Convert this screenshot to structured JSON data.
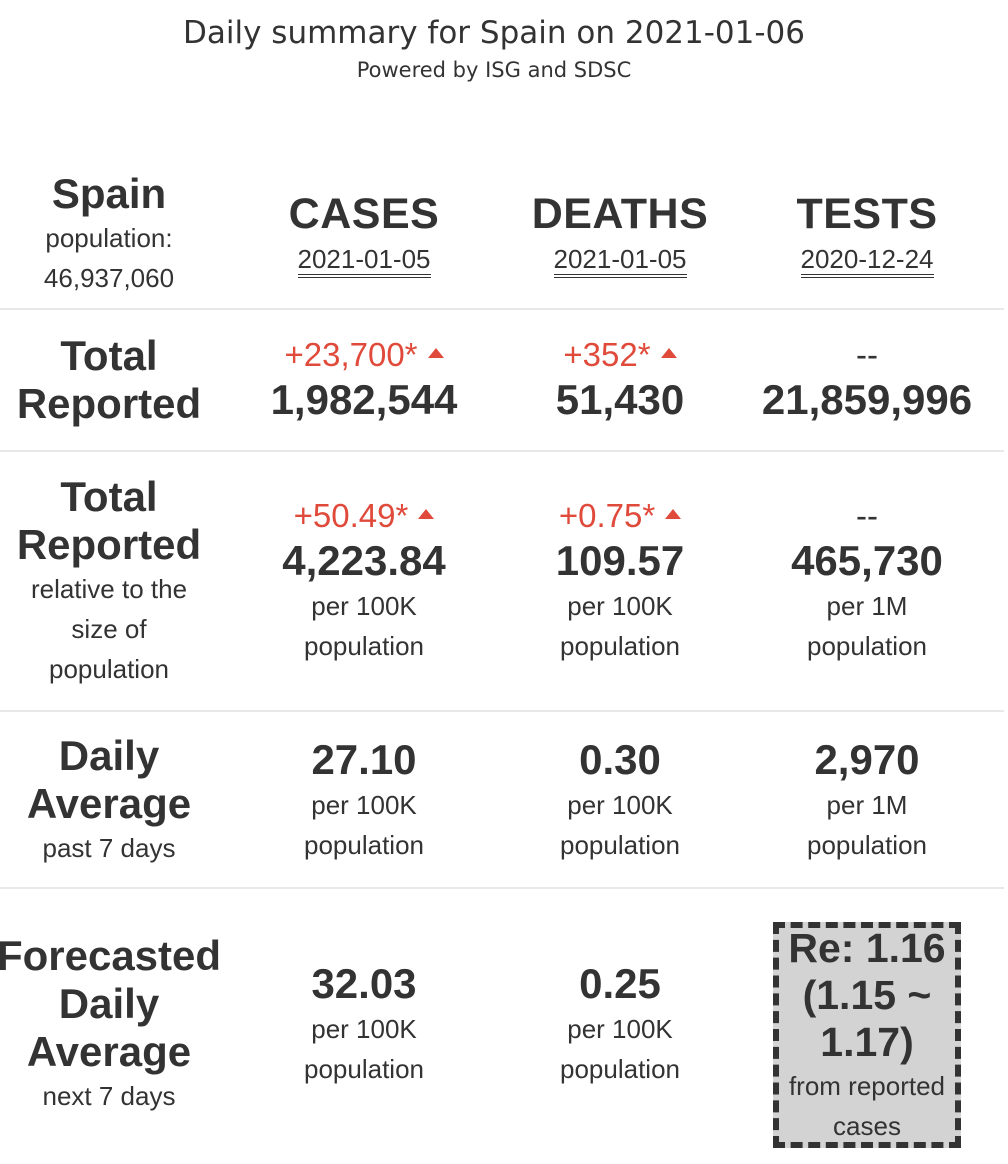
{
  "header": {
    "title": "Daily summary for Spain on 2021-01-06",
    "subtitle": "Powered by ISG and SDSC"
  },
  "country": {
    "name": "Spain",
    "population_label": "population:",
    "population_value": "46,937,060"
  },
  "columns": {
    "cases": {
      "label": "CASES",
      "date": "2021-01-05"
    },
    "deaths": {
      "label": "DEATHS",
      "date": "2021-01-05"
    },
    "tests": {
      "label": "TESTS",
      "date": "2020-12-24"
    }
  },
  "rows": {
    "total": {
      "label_line1": "Total",
      "label_line2": "Reported",
      "cases": {
        "delta": "+23,700*",
        "value": "1,982,544"
      },
      "deaths": {
        "delta": "+352*",
        "value": "51,430"
      },
      "tests": {
        "delta": "--",
        "value": "21,859,996"
      }
    },
    "relative": {
      "label_line1": "Total",
      "label_line2": "Reported",
      "label_sub1": "relative to the",
      "label_sub2": "size of",
      "label_sub3": "population",
      "cases": {
        "delta": "+50.49*",
        "value": "4,223.84",
        "unit1": "per 100K",
        "unit2": "population"
      },
      "deaths": {
        "delta": "+0.75*",
        "value": "109.57",
        "unit1": "per 100K",
        "unit2": "population"
      },
      "tests": {
        "delta": "--",
        "value": "465,730",
        "unit1": "per 1M",
        "unit2": "population"
      }
    },
    "daily_average": {
      "label_line1": "Daily",
      "label_line2": "Average",
      "label_sub": "past 7 days",
      "cases": {
        "value": "27.10",
        "unit1": "per 100K",
        "unit2": "population"
      },
      "deaths": {
        "value": "0.30",
        "unit1": "per 100K",
        "unit2": "population"
      },
      "tests": {
        "value": "2,970",
        "unit1": "per 1M",
        "unit2": "population"
      }
    },
    "forecast": {
      "label_line1": "Forecasted",
      "label_line2": "Daily",
      "label_line3": "Average",
      "label_sub": "next 7 days",
      "cases": {
        "value": "32.03",
        "unit1": "per 100K",
        "unit2": "population"
      },
      "deaths": {
        "value": "0.25",
        "unit1": "per 100K",
        "unit2": "population"
      },
      "re": {
        "line1": "Re: 1.16",
        "line2": "(1.15 ~",
        "line3": "1.17)",
        "sub1": "from reported",
        "sub2": "cases"
      }
    }
  },
  "colors": {
    "increase": "#e04a3b",
    "text": "#333333",
    "re_box_bg": "#d3d3d3"
  },
  "icons": {
    "increase": "triangle-up-icon"
  }
}
